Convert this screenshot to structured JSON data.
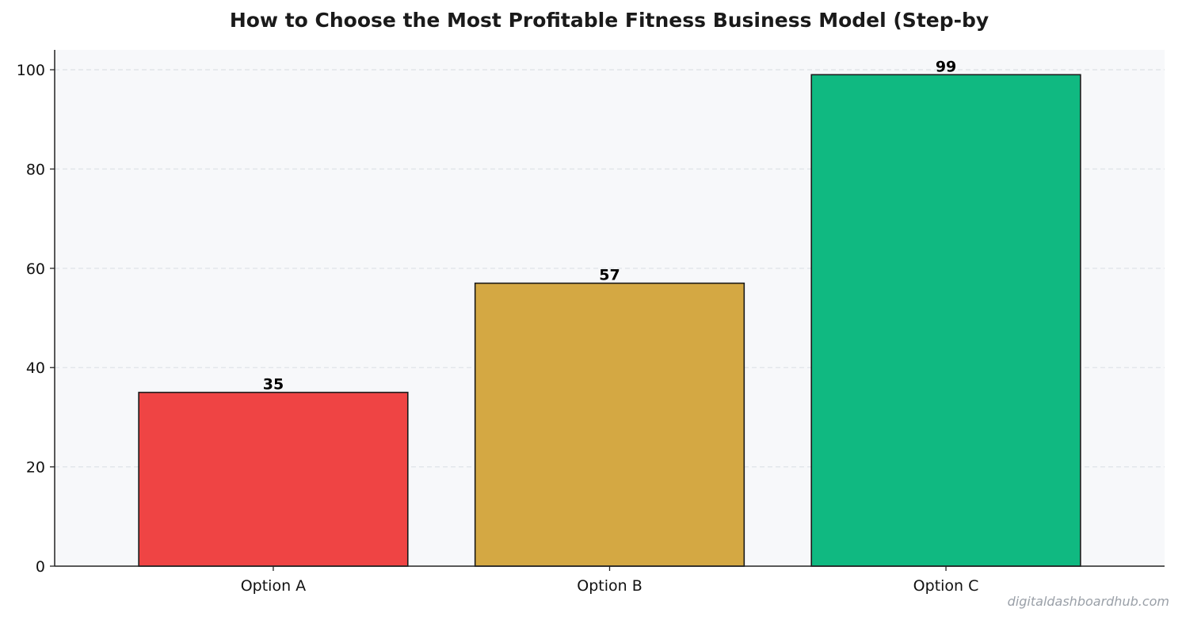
{
  "chart_data": {
    "type": "bar",
    "title": "How to Choose the Most Profitable Fitness Business Model (Step-by",
    "xlabel": "",
    "ylabel": "",
    "categories": [
      "Option A",
      "Option B",
      "Option C"
    ],
    "values": [
      35,
      57,
      99
    ],
    "data_labels": [
      "35",
      "57",
      "99"
    ],
    "colors": [
      "#ef4444",
      "#d4a843",
      "#10b981"
    ],
    "ylim": [
      0,
      104
    ],
    "yticks": [
      0,
      20,
      40,
      60,
      80,
      100
    ],
    "grid": true,
    "legend": "none"
  },
  "watermark": "digitaldashboardhub.com",
  "style": {
    "plot_background": "#f7f8fa",
    "bar_edge": "#1a1a1a",
    "grid_color": "#dfe3e8",
    "axis_color": "#222222"
  }
}
